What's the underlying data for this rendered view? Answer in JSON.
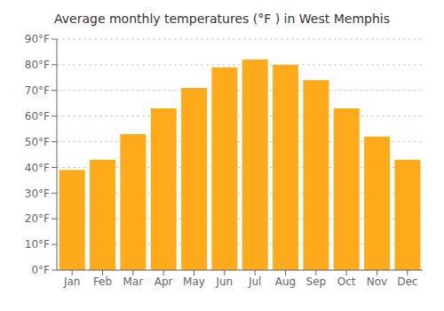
{
  "chart_data": {
    "type": "bar",
    "title": "Average monthly temperatures (°F ) in West Memphis",
    "categories": [
      "Jan",
      "Feb",
      "Mar",
      "Apr",
      "May",
      "Jun",
      "Jul",
      "Aug",
      "Sep",
      "Oct",
      "Nov",
      "Dec"
    ],
    "values": [
      39,
      43,
      53,
      63,
      71,
      79,
      82,
      80,
      74,
      63,
      52,
      43
    ],
    "color": "#FFAA1A",
    "ylim": [
      0,
      90
    ],
    "yticks": [
      {
        "value": 0,
        "label": "0°F"
      },
      {
        "value": 10,
        "label": "10°F"
      },
      {
        "value": 20,
        "label": "20°F"
      },
      {
        "value": 30,
        "label": "30°F"
      },
      {
        "value": 40,
        "label": "40°F"
      },
      {
        "value": 50,
        "label": "50°F"
      },
      {
        "value": 60,
        "label": "60°F"
      },
      {
        "value": 70,
        "label": "70°F"
      },
      {
        "value": 80,
        "label": "80°F"
      },
      {
        "value": 90,
        "label": "90°F"
      }
    ],
    "grid": true
  }
}
